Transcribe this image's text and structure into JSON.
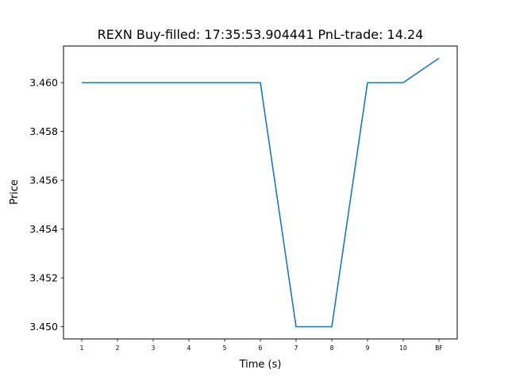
{
  "chart_data": {
    "type": "line",
    "title": "REXN  Buy-filled:  17:35:53.904441  PnL-trade:  14.24",
    "xlabel": "Time (s)",
    "ylabel": "Price",
    "categories": [
      "1",
      "2",
      "3",
      "4",
      "5",
      "6",
      "7",
      "8",
      "9",
      "10",
      "BF"
    ],
    "series": [
      {
        "values": [
          3.46,
          3.46,
          3.46,
          3.46,
          3.46,
          3.46,
          3.45,
          3.45,
          3.46,
          3.46,
          3.461
        ]
      }
    ],
    "yticks": [
      "3.450",
      "3.452",
      "3.454",
      "3.456",
      "3.458",
      "3.460"
    ],
    "ylim": [
      3.4495,
      3.4615
    ],
    "grid": false,
    "colors": {
      "line": "#1f77b4"
    }
  }
}
